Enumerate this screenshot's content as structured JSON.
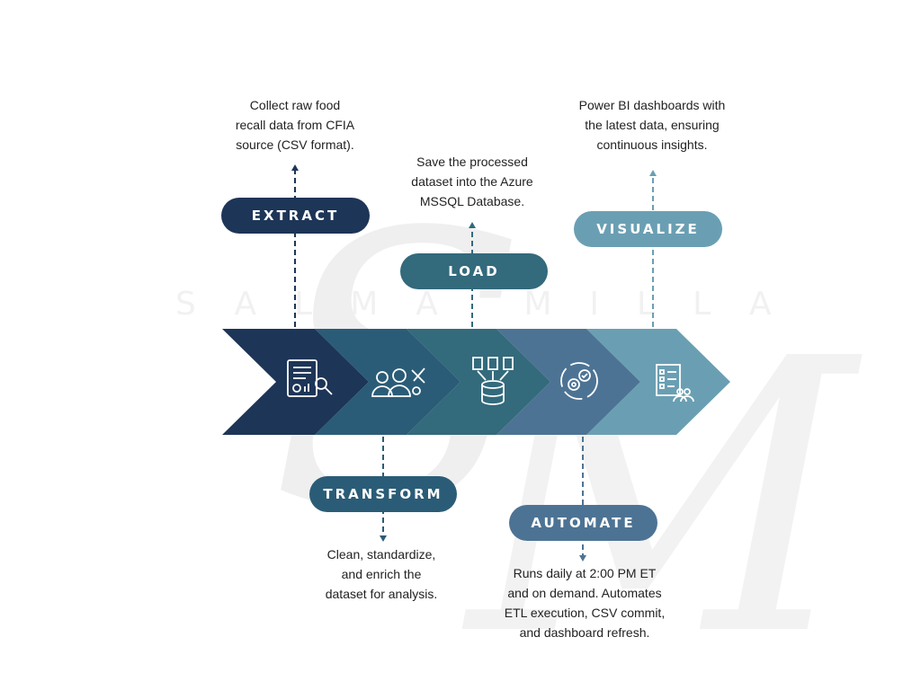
{
  "watermark": {
    "text": "SALMA MILLA"
  },
  "colors": {
    "extract": "#1d3557",
    "transform": "#2b5c77",
    "load": "#336a7c",
    "automate": "#4d7394",
    "visualize": "#6a9fb3"
  },
  "steps": [
    {
      "id": "extract",
      "label": "EXTRACT",
      "description": "Collect raw food\nrecall data from CFIA\nsource (CSV format).",
      "icon": "report-search-icon"
    },
    {
      "id": "transform",
      "label": "TRANSFORM",
      "description": "Clean, standardize,\nand enrich the\ndataset for analysis.",
      "icon": "team-tools-icon"
    },
    {
      "id": "load",
      "label": "LOAD",
      "description": "Save the processed\ndataset into the Azure\nMSSQL Database.",
      "icon": "documents-database-icon"
    },
    {
      "id": "automate",
      "label": "AUTOMATE",
      "description": "Runs daily at 2:00 PM ET\nand on demand. Automates\nETL execution, CSV commit,\nand dashboard refresh.",
      "icon": "gears-cycle-icon"
    },
    {
      "id": "visualize",
      "label": "VISUALIZE",
      "description": "Power BI dashboards with\nthe latest data, ensuring\ncontinuous insights.",
      "icon": "checklist-team-icon"
    }
  ]
}
